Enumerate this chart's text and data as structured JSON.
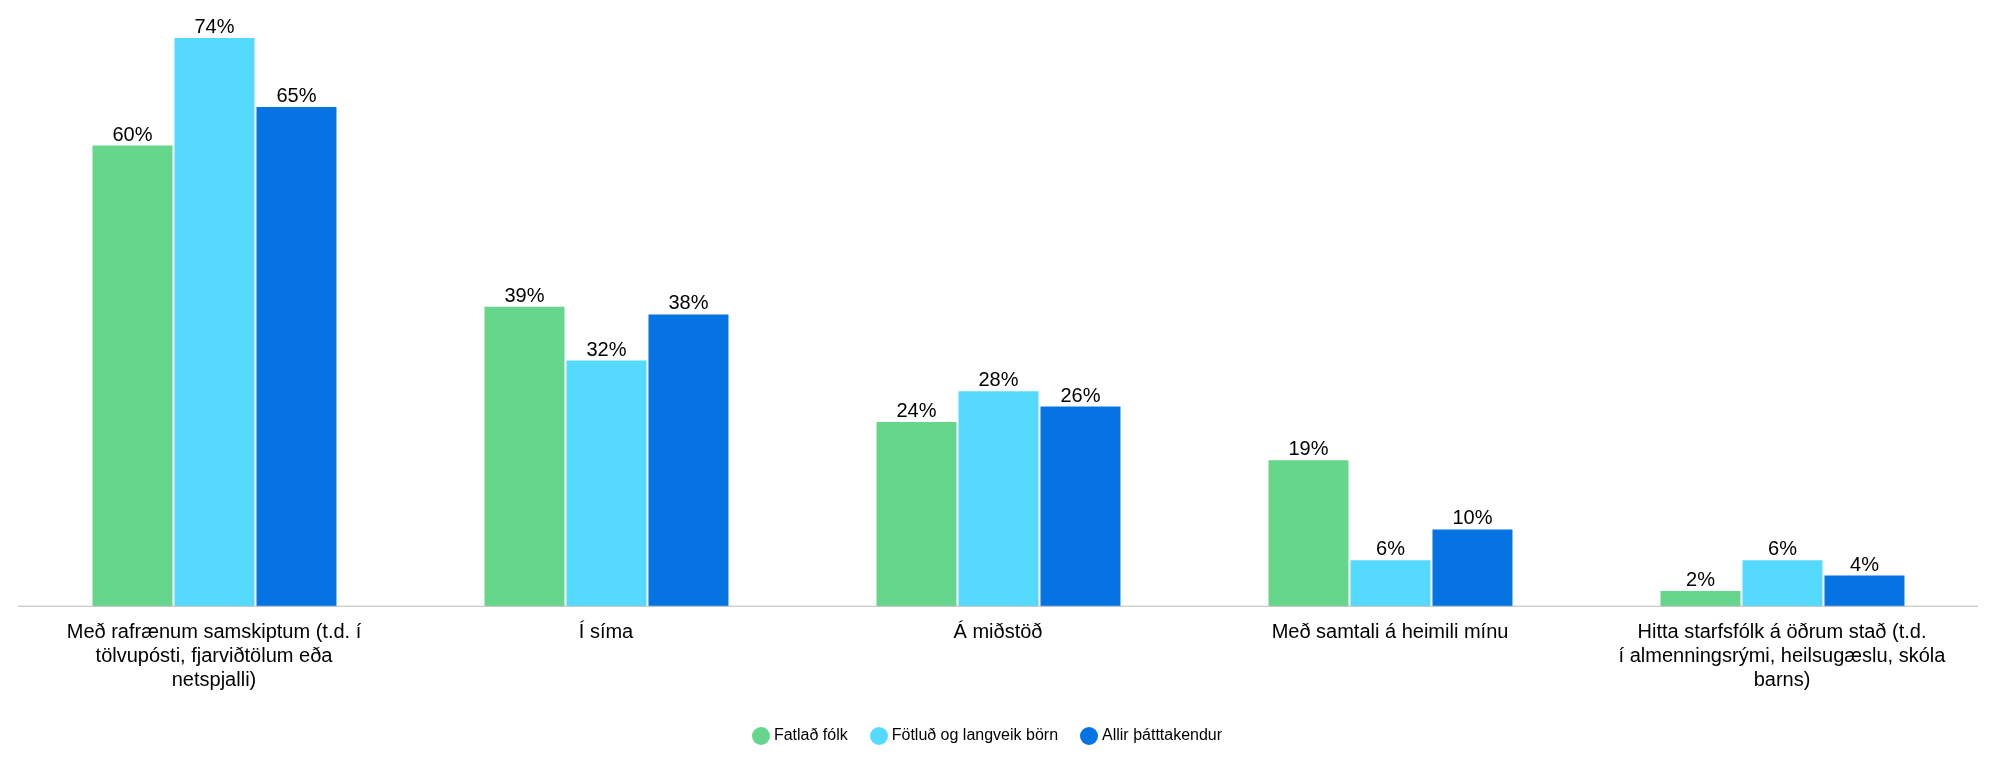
{
  "chart_data": {
    "type": "bar",
    "categories": [
      "Með rafrænum samskiptum (t.d. í tölvupósti, fjarviðtölum eða netspjalli)",
      "Í síma",
      "Á miðstöð",
      "Með samtali á heimili mínu",
      "Hitta starfsfólk á öðrum stað (t.d. í almenningsrými, heilsugæslu, skóla barns)"
    ],
    "series": [
      {
        "name": "Fatlað fólk",
        "color": "#66d68d",
        "values": [
          60,
          39,
          24,
          19,
          2
        ],
        "value_labels": [
          "60%",
          "39%",
          "24%",
          "19%",
          "2%"
        ]
      },
      {
        "name": "Fötluð og langveik börn",
        "color": "#55dafe",
        "values": [
          74,
          32,
          28,
          6,
          6
        ],
        "value_labels": [
          "74%",
          "32%",
          "28%",
          "6%",
          "6%"
        ]
      },
      {
        "name": "Allir þátttakendur",
        "color": "#0573e1",
        "values": [
          65,
          38,
          26,
          10,
          4
        ],
        "value_labels": [
          "65%",
          "38%",
          "26%",
          "10%",
          "4%"
        ]
      }
    ],
    "legend": "bottom",
    "grid": false
  }
}
